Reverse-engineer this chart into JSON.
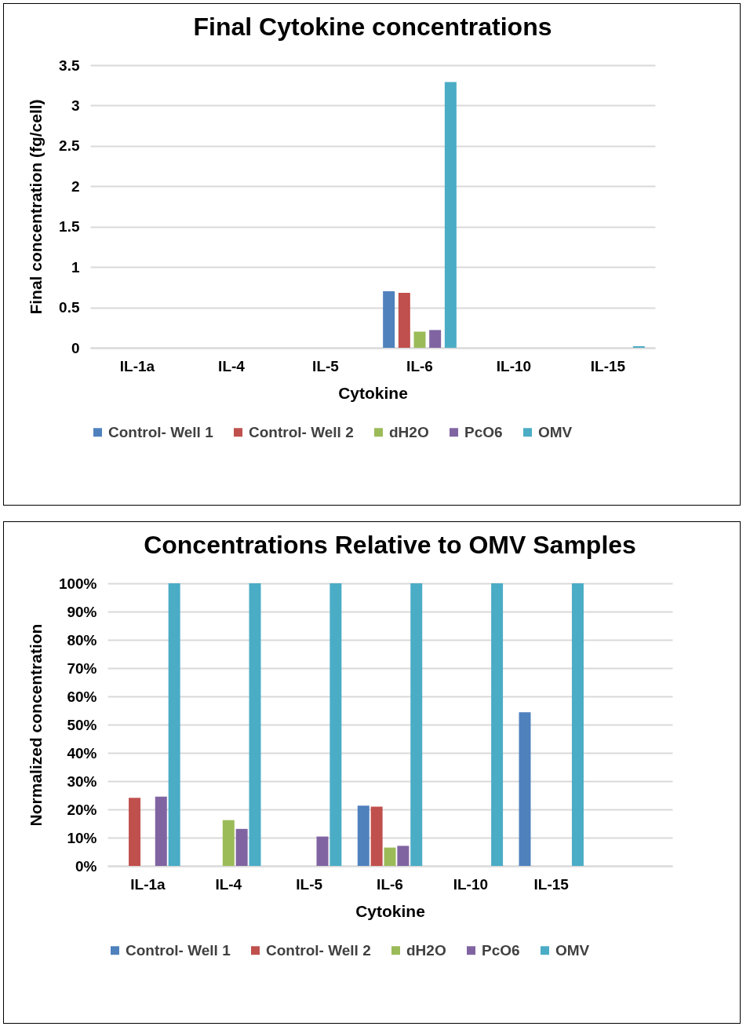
{
  "chart_data": [
    {
      "type": "bar",
      "title": "Final Cytokine concentrations",
      "xlabel": "Cytokine",
      "ylabel": "Final concentration (fg/cell)",
      "categories": [
        "IL-1a",
        "IL-4",
        "IL-5",
        "IL-6",
        "IL-10",
        "IL-15"
      ],
      "series": [
        {
          "name": "Control- Well 1",
          "color": "#4f81bd",
          "values": [
            0,
            0,
            0,
            0.7,
            0,
            0
          ]
        },
        {
          "name": "Control- Well 2",
          "color": "#c0504d",
          "values": [
            0,
            0,
            0,
            0.68,
            0,
            0
          ]
        },
        {
          "name": "dH2O",
          "color": "#9bbb59",
          "values": [
            0,
            0,
            0,
            0.2,
            0,
            0
          ]
        },
        {
          "name": "PcO6",
          "color": "#8064a2",
          "values": [
            0,
            0,
            0,
            0.22,
            0,
            0
          ]
        },
        {
          "name": "OMV",
          "color": "#4bacc6",
          "values": [
            0,
            0,
            0,
            3.29,
            0,
            0.02
          ]
        }
      ],
      "ylim": [
        0,
        3.5
      ],
      "yticks": [
        0,
        0.5,
        1,
        1.5,
        2,
        2.5,
        3,
        3.5
      ],
      "grid": "y",
      "legend": "bottom"
    },
    {
      "type": "bar",
      "title": "Concentrations Relative to OMV Samples",
      "xlabel": "Cytokine",
      "ylabel": "Normalized concentration",
      "categories": [
        "IL-1a",
        "IL-4",
        "IL-5",
        "IL-6",
        "IL-10",
        "IL-15",
        null
      ],
      "series": [
        {
          "name": "Control- Well 1",
          "color": "#4f81bd",
          "values": [
            0,
            0,
            0,
            21.3,
            0,
            54.4,
            null
          ]
        },
        {
          "name": "Control- Well 2",
          "color": "#c0504d",
          "values": [
            24.1,
            0,
            0,
            21,
            0,
            0,
            null
          ]
        },
        {
          "name": "dH2O",
          "color": "#9bbb59",
          "values": [
            0,
            16.2,
            0,
            6.5,
            0,
            0,
            null
          ]
        },
        {
          "name": "PcO6",
          "color": "#8064a2",
          "values": [
            24.5,
            13.1,
            10.4,
            7.1,
            0,
            0,
            null
          ]
        },
        {
          "name": "OMV",
          "color": "#4bacc6",
          "values": [
            100,
            100,
            100,
            100,
            100,
            100,
            null
          ]
        }
      ],
      "ylim": [
        0,
        100
      ],
      "yticks": [
        {
          "value": 0,
          "label": "0%"
        },
        {
          "value": 10,
          "label": "10%"
        },
        {
          "value": 20,
          "label": "20%"
        },
        {
          "value": 30,
          "label": "30%"
        },
        {
          "value": 40,
          "label": "40%"
        },
        {
          "value": 50,
          "label": "50%"
        },
        {
          "value": 60,
          "label": "60%"
        },
        {
          "value": 70,
          "label": "70%"
        },
        {
          "value": 80,
          "label": "80%"
        },
        {
          "value": 90,
          "label": "90%"
        },
        {
          "value": 100,
          "label": "100%"
        }
      ],
      "grid": "y",
      "legend": "bottom"
    }
  ]
}
